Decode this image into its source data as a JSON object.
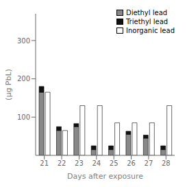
{
  "chart_data": {
    "type": "bar",
    "xlabel": "Days after exposure",
    "ylabel": "(µg PbL)",
    "categories": [
      "21",
      "22",
      "23",
      "24",
      "25",
      "26",
      "27",
      "28"
    ],
    "series": [
      {
        "name": "Diethyl lead",
        "color": "#888888",
        "stacked": true,
        "values": [
          165,
          65,
          75,
          15,
          15,
          55,
          45,
          15
        ]
      },
      {
        "name": "Triethyl lead",
        "color": "#111111",
        "stacked": true,
        "values": [
          15,
          10,
          8,
          10,
          10,
          8,
          8,
          10
        ]
      },
      {
        "name": "Inorganic lead",
        "color": "#ffffff",
        "values": [
          165,
          65,
          130,
          130,
          85,
          85,
          85,
          130
        ]
      }
    ],
    "ylim": [
      0,
      370
    ],
    "yticks": [
      100,
      200,
      300
    ],
    "grid": false,
    "legend": "upper right"
  }
}
